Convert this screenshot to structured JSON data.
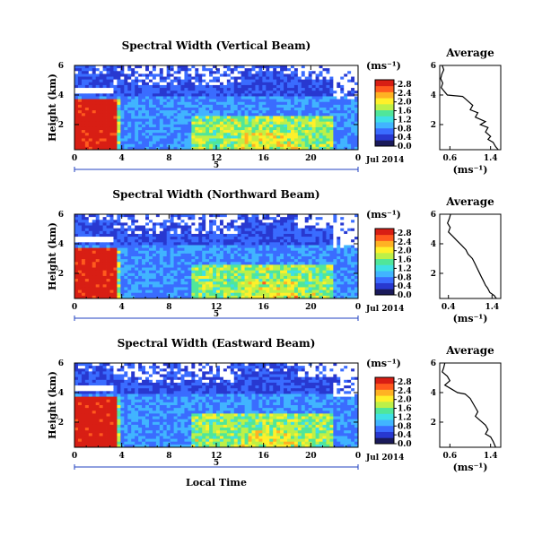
{
  "colors": {
    "scale": [
      "#1a1a5a",
      "#2838d0",
      "#3a6cff",
      "#41b4ff",
      "#3fe0e6",
      "#50e69a",
      "#bdf048",
      "#fff02a",
      "#ffb223",
      "#ff5a1e",
      "#d81e14"
    ],
    "missing": "#ffffff"
  },
  "common": {
    "xaxis_date": "Jul 2014",
    "xaxis_day": "5",
    "xaxis_label": "Local Time",
    "ylabel": "Height (km)",
    "avg_title": "Average",
    "avg_xlabel": "(ms⁻¹)",
    "colorbar_unit": "(ms⁻¹)",
    "colorbar_ticks": [
      "2.8",
      "2.4",
      "2.0",
      "1.6",
      "1.2",
      "0.8",
      "0.4",
      "0.0"
    ]
  },
  "chart_data": [
    {
      "type": "heatmap",
      "title": "Spectral Width (Vertical Beam)",
      "xlabel": "",
      "ylabel": "Height (km)",
      "x_ticks": [
        "0",
        "4",
        "8",
        "12",
        "16",
        "20",
        "0"
      ],
      "y_ticks": [
        "6",
        "4",
        "2"
      ],
      "xlim": [
        0,
        24
      ],
      "ylim": [
        0.3,
        6
      ],
      "color_range": [
        0,
        3.0
      ],
      "colorbar_label": "(ms⁻¹)",
      "colorbar_ticks": [
        "2.8",
        "2.4",
        "2.0",
        "1.6",
        "1.2",
        "0.8",
        "0.4",
        "0.0"
      ],
      "average_profile": {
        "title": "Average",
        "xlabel": "(ms⁻¹)",
        "x_ticks": [
          "0.6",
          "1.4"
        ],
        "xlim": [
          0.4,
          1.6
        ],
        "y_ticks": [
          "6",
          "4",
          "2"
        ],
        "ylim": [
          0.3,
          6
        ],
        "points": [
          [
            0.45,
            6.0
          ],
          [
            0.48,
            5.7
          ],
          [
            0.44,
            5.4
          ],
          [
            0.42,
            5.1
          ],
          [
            0.46,
            4.8
          ],
          [
            0.43,
            4.5
          ],
          [
            0.5,
            4.2
          ],
          [
            0.55,
            4.0
          ],
          [
            0.85,
            3.9
          ],
          [
            0.95,
            3.6
          ],
          [
            1.05,
            3.3
          ],
          [
            1.0,
            3.0
          ],
          [
            1.15,
            2.8
          ],
          [
            1.1,
            2.5
          ],
          [
            1.3,
            2.2
          ],
          [
            1.2,
            2.0
          ],
          [
            1.35,
            1.8
          ],
          [
            1.3,
            1.5
          ],
          [
            1.4,
            1.2
          ],
          [
            1.35,
            1.0
          ],
          [
            1.45,
            0.8
          ],
          [
            1.5,
            0.5
          ],
          [
            1.55,
            0.3
          ]
        ]
      }
    },
    {
      "type": "heatmap",
      "title": "Spectral Width (Northward Beam)",
      "xlabel": "",
      "ylabel": "Height (km)",
      "x_ticks": [
        "0",
        "4",
        "8",
        "12",
        "16",
        "20",
        "0"
      ],
      "y_ticks": [
        "6",
        "4",
        "2"
      ],
      "xlim": [
        0,
        24
      ],
      "ylim": [
        0.3,
        6
      ],
      "color_range": [
        0,
        3.0
      ],
      "colorbar_label": "(ms⁻¹)",
      "colorbar_ticks": [
        "2.8",
        "2.4",
        "2.0",
        "1.6",
        "1.2",
        "0.8",
        "0.4",
        "0.0"
      ],
      "average_profile": {
        "title": "Average",
        "xlabel": "(ms⁻¹)",
        "x_ticks": [
          "0.4",
          "1.4"
        ],
        "xlim": [
          0.2,
          1.6
        ],
        "y_ticks": [
          "6",
          "4",
          "2"
        ],
        "ylim": [
          0.3,
          6
        ],
        "points": [
          [
            0.45,
            6.0
          ],
          [
            0.42,
            5.7
          ],
          [
            0.38,
            5.4
          ],
          [
            0.44,
            5.1
          ],
          [
            0.4,
            4.8
          ],
          [
            0.5,
            4.5
          ],
          [
            0.6,
            4.2
          ],
          [
            0.7,
            3.9
          ],
          [
            0.8,
            3.6
          ],
          [
            0.85,
            3.3
          ],
          [
            0.95,
            3.0
          ],
          [
            1.0,
            2.7
          ],
          [
            1.05,
            2.4
          ],
          [
            1.1,
            2.1
          ],
          [
            1.15,
            1.8
          ],
          [
            1.2,
            1.5
          ],
          [
            1.25,
            1.2
          ],
          [
            1.3,
            1.0
          ],
          [
            1.35,
            0.7
          ],
          [
            1.45,
            0.5
          ],
          [
            1.5,
            0.3
          ]
        ]
      }
    },
    {
      "type": "heatmap",
      "title": "Spectral Width (Eastward Beam)",
      "xlabel": "Local Time",
      "ylabel": "Height (km)",
      "x_ticks": [
        "0",
        "4",
        "8",
        "12",
        "16",
        "20",
        "0"
      ],
      "y_ticks": [
        "6",
        "4",
        "2"
      ],
      "xlim": [
        0,
        24
      ],
      "ylim": [
        0.3,
        6
      ],
      "color_range": [
        0,
        3.0
      ],
      "colorbar_label": "(ms⁻¹)",
      "colorbar_ticks": [
        "2.8",
        "2.4",
        "2.0",
        "1.6",
        "1.2",
        "0.8",
        "0.4",
        "0.0"
      ],
      "average_profile": {
        "title": "Average",
        "xlabel": "(ms⁻¹)",
        "x_ticks": [
          "0.6",
          "1.4"
        ],
        "xlim": [
          0.4,
          1.6
        ],
        "y_ticks": [
          "6",
          "4",
          "2"
        ],
        "ylim": [
          0.3,
          6
        ],
        "points": [
          [
            0.5,
            6.0
          ],
          [
            0.48,
            5.7
          ],
          [
            0.45,
            5.4
          ],
          [
            0.55,
            5.1
          ],
          [
            0.6,
            4.8
          ],
          [
            0.5,
            4.5
          ],
          [
            0.65,
            4.2
          ],
          [
            0.75,
            4.0
          ],
          [
            0.9,
            3.9
          ],
          [
            1.0,
            3.6
          ],
          [
            1.05,
            3.3
          ],
          [
            1.1,
            3.0
          ],
          [
            1.15,
            2.7
          ],
          [
            1.1,
            2.4
          ],
          [
            1.2,
            2.1
          ],
          [
            1.3,
            1.8
          ],
          [
            1.35,
            1.5
          ],
          [
            1.3,
            1.2
          ],
          [
            1.4,
            1.0
          ],
          [
            1.45,
            0.7
          ],
          [
            1.5,
            0.3
          ]
        ]
      }
    }
  ]
}
